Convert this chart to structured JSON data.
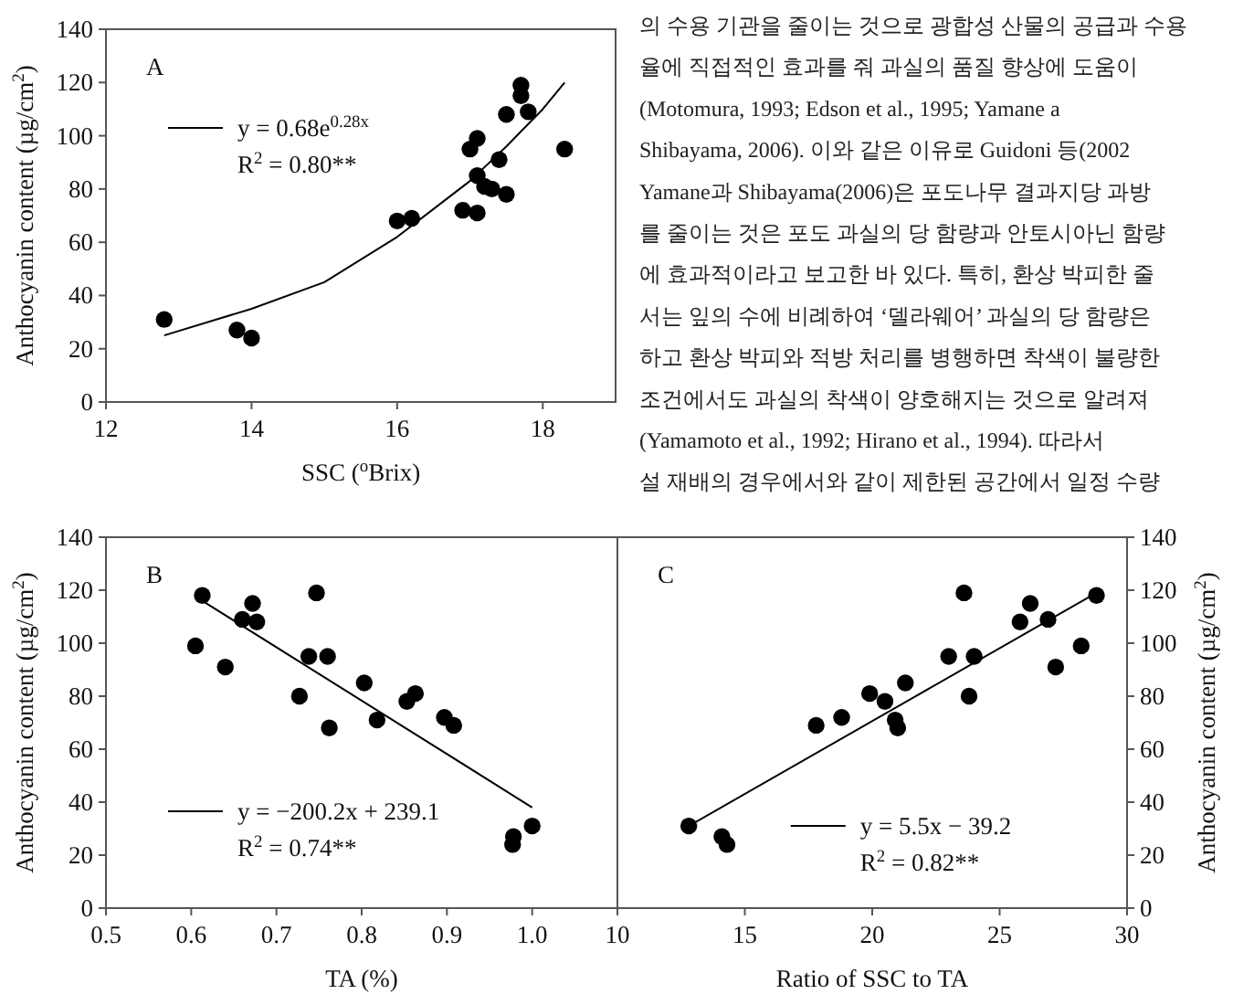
{
  "chart_data": [
    {
      "type": "scatter",
      "xlabel": "SSC ($^{o}$Brix)",
      "ylabel": "Anthocyanin content (µg/cm$^{2}$)",
      "xlim": [
        12,
        19
      ],
      "xticks": [
        12,
        14,
        16,
        18
      ],
      "ylim": [
        0,
        140
      ],
      "yticks": [
        0,
        20,
        40,
        60,
        80,
        100,
        120,
        140
      ],
      "legend": "top left",
      "annotations": [
        "A",
        "R$^{2}$ = 0.80**"
      ],
      "series": [
        {
          "type": "scatter",
          "marker": "circle",
          "color": "#000000",
          "x": [
            12.8,
            13.8,
            14.0,
            16.0,
            16.2,
            16.9,
            17.0,
            17.1,
            17.1,
            17.1,
            17.2,
            17.3,
            17.4,
            17.5,
            17.5,
            17.7,
            17.7,
            17.8,
            18.3
          ],
          "values": [
            31,
            27,
            24,
            68,
            69,
            72,
            95,
            99,
            85,
            71,
            81,
            80,
            91,
            108,
            78,
            119,
            115,
            109,
            95
          ]
        },
        {
          "type": "line",
          "name": "y = 0.68e$^{0.28x}$",
          "color": "#000000",
          "line_style": "solid",
          "x": [
            12.8,
            14,
            15,
            16,
            17,
            17.5,
            18,
            18.3
          ],
          "values": [
            25,
            35,
            45,
            62,
            83,
            96,
            110,
            120
          ]
        }
      ]
    },
    {
      "type": "other",
      "annotations": [
        "의 수용 기관을 줄이는 것으로 광합성 산물의 공급과 수용",
        "율에 직접적인 효과를 줘 과실의 품질 향상에 도움이",
        "(Motomura, 1993; Edson et al., 1995; Yamane a",
        "Shibayama, 2006). 이와 같은 이유로 Guidoni 등(2002",
        "Yamane과 Shibayama(2006)은 포도나무 결과지당 과방",
        "를 줄이는 것은 포도 과실의 당 함량과 안토시아닌 함량",
        "에 효과적이라고 보고한 바 있다. 특히, 환상 박피한 줄",
        "서는 잎의 수에 비례하여 ‘델라웨어’ 과실의 당 함량은",
        "하고 환상 박피와 적방 처리를 병행하면 착색이 불량한",
        "조건에서도 과실의 착색이 양호해지는 것으로 알려져",
        "(Yamamoto et al., 1992; Hirano et al., 1994). 따라서",
        "설 재배의 경우에서와 같이 제한된 공간에서 일정 수량"
      ]
    },
    {
      "type": "scatter",
      "xlabel": "TA (%)",
      "ylabel": "Anthocyanin content (µg/cm$^{2}$)",
      "xlim": [
        0.5,
        1.1
      ],
      "xticks": [
        0.5,
        0.6,
        0.7,
        0.8,
        0.9,
        {
          "value": 1.0,
          "label": "1.0"
        },
        {
          "value": 1.1,
          "label": null
        }
      ],
      "ylim": [
        0,
        140
      ],
      "yticks": [
        0,
        20,
        40,
        60,
        80,
        100,
        120,
        140
      ],
      "legend": "bottom left",
      "annotations": [
        "B",
        "R$^{2}$ = 0.74**"
      ],
      "series": [
        {
          "type": "scatter",
          "marker": "circle",
          "color": "#000000",
          "x": [
            0.605,
            0.613,
            0.64,
            0.66,
            0.672,
            0.677,
            0.727,
            0.738,
            0.747,
            0.76,
            0.762,
            0.803,
            0.818,
            0.853,
            0.863,
            0.897,
            0.908,
            0.977,
            0.978,
            1.0
          ],
          "values": [
            99,
            118,
            91,
            109,
            115,
            108,
            80,
            95,
            119,
            95,
            68,
            85,
            71,
            78,
            81,
            72,
            69,
            24,
            27,
            31
          ]
        },
        {
          "type": "line",
          "name": "y = −200.2x + 239.1",
          "color": "#000000",
          "line_style": "solid",
          "x": [
            0.613,
            1.0
          ],
          "values": [
            116,
            38
          ]
        }
      ]
    },
    {
      "type": "scatter",
      "xlabel": "Ratio of SSC to TA",
      "ylabel": "Anthocyanin content (µg/cm$^{2}$)",
      "xlim": [
        10,
        30
      ],
      "xticks": [
        10,
        15,
        20,
        25,
        30
      ],
      "ylim": [
        0,
        140
      ],
      "yticks": [
        0,
        20,
        40,
        60,
        80,
        100,
        120,
        140
      ],
      "legend": "bottom",
      "annotations": [
        "C",
        "R$^{2}$ = 0.82**"
      ],
      "series": [
        {
          "type": "scatter",
          "marker": "circle",
          "color": "#000000",
          "x": [
            12.8,
            14.1,
            14.3,
            17.8,
            18.8,
            19.9,
            20.5,
            20.9,
            21.0,
            21.3,
            23.0,
            23.6,
            23.8,
            24.0,
            25.8,
            26.2,
            26.9,
            27.2,
            28.2,
            28.8
          ],
          "values": [
            31,
            27,
            24,
            69,
            72,
            81,
            78,
            71,
            68,
            85,
            95,
            119,
            80,
            95,
            108,
            115,
            109,
            91,
            99,
            118
          ]
        },
        {
          "type": "line",
          "name": "y = 5.5x − 39.2",
          "color": "#000000",
          "line_style": "solid",
          "x": [
            12.8,
            28.8
          ],
          "values": [
            31,
            119
          ]
        }
      ]
    }
  ]
}
